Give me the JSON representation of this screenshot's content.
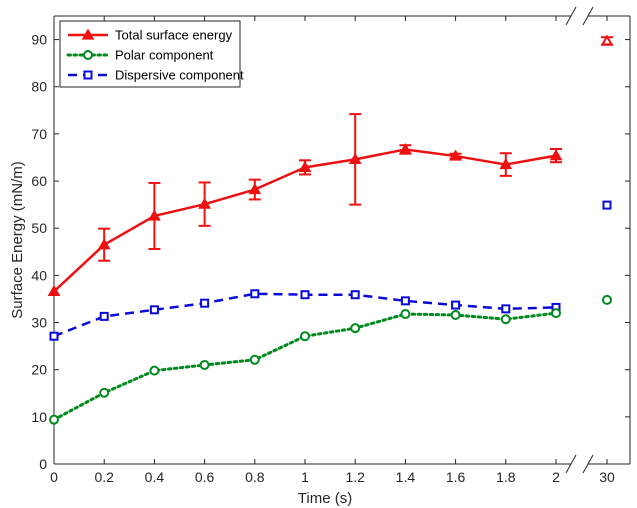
{
  "chart_data": {
    "type": "line",
    "title": "",
    "xlabel": "Time (s)",
    "ylabel": "Surface Energy (mN/m)",
    "x_ticks": [
      "0",
      "0.2",
      "0.4",
      "0.6",
      "0.8",
      "1",
      "1.2",
      "1.4",
      "1.6",
      "1.8",
      "2"
    ],
    "x_break_tick": "30",
    "xlim": [
      0,
      2
    ],
    "ylim": [
      0,
      95
    ],
    "y_ticks": [
      "0",
      "10",
      "20",
      "30",
      "40",
      "50",
      "60",
      "70",
      "80",
      "90"
    ],
    "x_break_after": 2,
    "grid": false,
    "legend_position": "top-left",
    "series": [
      {
        "name": "Total surface energy",
        "color": "#ee1111",
        "line_style": "solid",
        "marker": "triangle",
        "x": [
          0,
          0.2,
          0.4,
          0.6,
          0.8,
          1.0,
          1.2,
          1.4,
          1.6,
          1.8,
          2.0
        ],
        "values": [
          36.6,
          46.5,
          52.6,
          55.1,
          58.2,
          62.9,
          64.6,
          66.7,
          65.3,
          63.5,
          65.4
        ],
        "error": [
          0,
          3.4,
          7.0,
          4.6,
          2.1,
          1.5,
          9.6,
          0.9,
          0.5,
          2.4,
          1.4
        ],
        "break_value": 89.7,
        "break_error": 0.8
      },
      {
        "name": "Polar component",
        "color": "#008a1e",
        "line_style": "dotted",
        "marker": "circle",
        "x": [
          0,
          0.2,
          0.4,
          0.6,
          0.8,
          1.0,
          1.2,
          1.4,
          1.6,
          1.8,
          2.0
        ],
        "values": [
          9.4,
          15.1,
          19.8,
          21.0,
          22.1,
          27.1,
          28.8,
          31.8,
          31.6,
          30.7,
          32.0
        ],
        "break_value": 34.8
      },
      {
        "name": "Dispersive component",
        "color": "#0a0ad8",
        "line_style": "dashed",
        "marker": "square",
        "x": [
          0,
          0.2,
          0.4,
          0.6,
          0.8,
          1.0,
          1.2,
          1.4,
          1.6,
          1.8,
          2.0
        ],
        "values": [
          27.1,
          31.3,
          32.7,
          34.1,
          36.1,
          35.9,
          35.9,
          34.6,
          33.7,
          32.9,
          33.2
        ],
        "break_value": 54.9
      }
    ]
  }
}
